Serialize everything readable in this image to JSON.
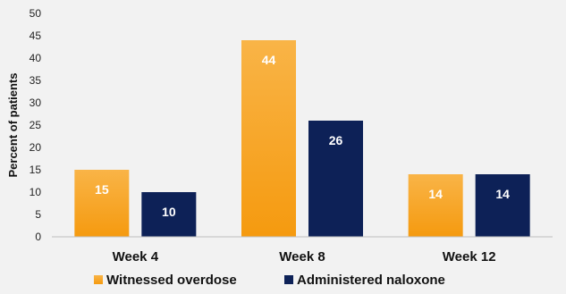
{
  "chart_data": {
    "type": "bar",
    "title": "",
    "xlabel": "",
    "ylabel": "Percent of patients",
    "categories": [
      "Week 4",
      "Week 8",
      "Week 12"
    ],
    "series": [
      {
        "name": "Witnessed overdose",
        "values": [
          15,
          44,
          14
        ],
        "color": "#f7a21b"
      },
      {
        "name": "Administered naloxone",
        "values": [
          10,
          26,
          14
        ],
        "color": "#0d2157"
      }
    ],
    "ylim": [
      0,
      50
    ],
    "yticks": [
      0,
      5,
      10,
      15,
      20,
      25,
      30,
      35,
      40,
      45,
      50
    ],
    "grid": false,
    "legend": "bottom",
    "data_labels": true
  }
}
